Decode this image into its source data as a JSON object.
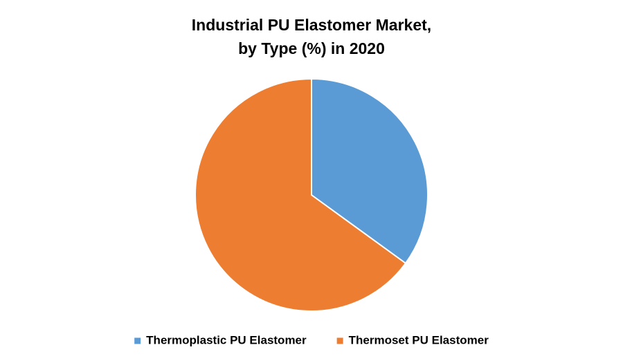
{
  "chart_data": {
    "type": "pie",
    "title": [
      "Industrial PU Elastomer Market,",
      "by Type (%) in 2020"
    ],
    "categories": [
      "Thermoplastic PU Elastomer",
      "Thermoset PU Elastomer"
    ],
    "values": [
      35,
      65
    ],
    "colors": [
      "#5b9bd5",
      "#ed7d31"
    ],
    "legend": "bottom"
  }
}
